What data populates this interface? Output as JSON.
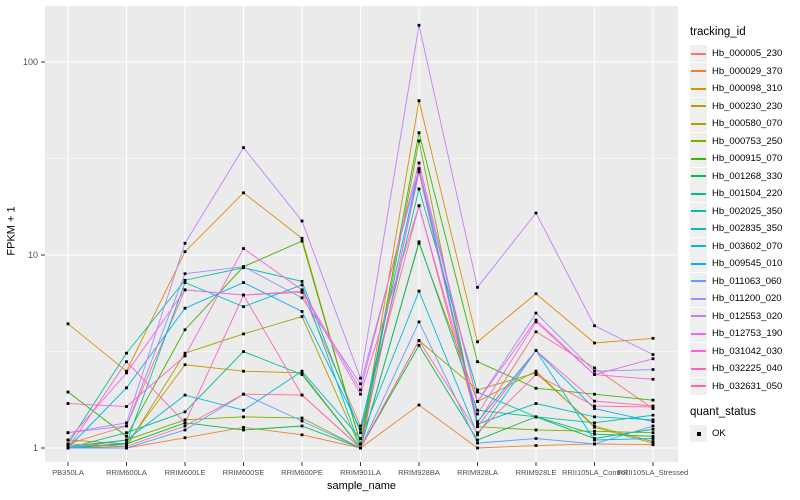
{
  "chart_data": {
    "type": "line",
    "xlabel": "sample_name",
    "ylabel": "FPKM + 1",
    "y_scale": "log10",
    "y_tick_labels": [
      "1",
      "10",
      "100"
    ],
    "y_tick_values": [
      1,
      10,
      100
    ],
    "y_minor_values": [
      3.162,
      31.62
    ],
    "x_categories": [
      "PB350LA",
      "RRIM600LA",
      "RRIM600LE",
      "RRIM600SE",
      "RRIM600PE",
      "RRIM901LA",
      "RRIM928BA",
      "RRIM928LA",
      "RRIM928LE",
      "RRII105LA_Control",
      "RRII105LA_Stressed"
    ],
    "legend": {
      "title": "tracking_id"
    },
    "legend2": {
      "title": "quant_status",
      "items": [
        {
          "label": "OK",
          "marker": "point"
        }
      ]
    },
    "point_color": "#000000",
    "series": [
      {
        "name": "Hb_000005_230",
        "color": "#F8766D",
        "values": [
          1.05,
          1.3,
          6.6,
          6.2,
          6.4,
          1.3,
          18.0,
          1.35,
          4.0,
          2.6,
          1.6
        ]
      },
      {
        "name": "Hb_000029_370",
        "color": "#EA8331",
        "values": [
          1.0,
          1.0,
          1.13,
          1.28,
          1.17,
          1.0,
          1.67,
          1.0,
          1.03,
          1.05,
          1.04
        ]
      },
      {
        "name": "Hb_000098_310",
        "color": "#D89000",
        "values": [
          4.4,
          2.5,
          10.4,
          21.0,
          12.2,
          1.05,
          63.0,
          3.55,
          6.3,
          3.5,
          3.7
        ]
      },
      {
        "name": "Hb_000230_230",
        "color": "#C09B00",
        "values": [
          1.1,
          1.05,
          2.7,
          2.5,
          2.45,
          1.0,
          11.5,
          1.74,
          2.5,
          1.28,
          1.06
        ]
      },
      {
        "name": "Hb_000580_070",
        "color": "#A3A500",
        "values": [
          1.0,
          1.02,
          3.1,
          3.9,
          4.8,
          1.0,
          3.6,
          2.0,
          2.45,
          1.3,
          1.08
        ]
      },
      {
        "name": "Hb_000753_250",
        "color": "#7CAE00",
        "values": [
          1.02,
          1.1,
          1.4,
          1.45,
          1.43,
          1.0,
          39.0,
          1.29,
          1.24,
          1.22,
          1.2
        ]
      },
      {
        "name": "Hb_000915_070",
        "color": "#39B600",
        "values": [
          1.95,
          1.15,
          4.1,
          8.7,
          11.8,
          1.05,
          43.0,
          2.8,
          2.04,
          1.9,
          1.77
        ]
      },
      {
        "name": "Hb_001268_330",
        "color": "#00BB4E",
        "values": [
          1.0,
          1.05,
          1.35,
          1.24,
          1.3,
          1.0,
          3.4,
          1.1,
          1.45,
          1.12,
          1.25
        ]
      },
      {
        "name": "Hb_001504_220",
        "color": "#00BF7D",
        "values": [
          1.0,
          1.2,
          1.54,
          3.16,
          2.4,
          1.0,
          11.7,
          1.57,
          1.45,
          1.18,
          1.15
        ]
      },
      {
        "name": "Hb_002025_350",
        "color": "#00C1A2",
        "values": [
          1.05,
          3.1,
          7.4,
          8.6,
          7.3,
          1.2,
          22.0,
          1.95,
          1.45,
          1.35,
          1.48
        ]
      },
      {
        "name": "Hb_002835_350",
        "color": "#00BFC4",
        "values": [
          1.0,
          1.06,
          7.2,
          5.4,
          7.0,
          1.0,
          27.0,
          1.33,
          1.7,
          1.45,
          1.4
        ]
      },
      {
        "name": "Hb_003602_070",
        "color": "#00BADE",
        "values": [
          1.0,
          1.1,
          1.88,
          1.57,
          2.5,
          1.12,
          6.5,
          1.17,
          3.2,
          1.1,
          1.12
        ]
      },
      {
        "name": "Hb_009545_010",
        "color": "#00B0F6",
        "values": [
          1.0,
          2.05,
          5.3,
          7.2,
          5.1,
          1.25,
          28.0,
          1.37,
          3.2,
          1.6,
          1.37
        ]
      },
      {
        "name": "Hb_011063_060",
        "color": "#619CFF",
        "values": [
          1.0,
          1.0,
          1.24,
          1.9,
          1.38,
          1.0,
          4.5,
          1.06,
          1.12,
          1.05,
          1.3
        ]
      },
      {
        "name": "Hb_011200_020",
        "color": "#9590FF",
        "values": [
          1.2,
          1.3,
          8.0,
          8.7,
          6.0,
          2.15,
          28.0,
          1.74,
          5.0,
          2.5,
          2.55
        ]
      },
      {
        "name": "Hb_012553_020",
        "color": "#C77CFF",
        "values": [
          1.2,
          1.35,
          11.5,
          36.0,
          15.0,
          2.3,
          155.0,
          6.8,
          16.5,
          4.3,
          3.05
        ]
      },
      {
        "name": "Hb_012753_190",
        "color": "#E76BF3",
        "values": [
          1.1,
          2.45,
          6.6,
          6.2,
          6.5,
          1.9,
          18.0,
          1.5,
          4.5,
          2.4,
          2.9
        ]
      },
      {
        "name": "Hb_031042_030",
        "color": "#FA62DB",
        "values": [
          1.7,
          1.64,
          3.0,
          10.8,
          6.6,
          2.0,
          30.0,
          1.74,
          4.6,
          2.4,
          2.27
        ]
      },
      {
        "name": "Hb_032225_040",
        "color": "#FF61BE",
        "values": [
          1.0,
          2.8,
          1.35,
          6.2,
          1.88,
          1.0,
          27.0,
          1.29,
          3.2,
          1.75,
          1.65
        ]
      },
      {
        "name": "Hb_032631_050",
        "color": "#FF6C91",
        "values": [
          1.05,
          1.02,
          1.3,
          1.9,
          1.88,
          1.0,
          3.6,
          1.2,
          2.4,
          1.65,
          1.63
        ]
      }
    ],
    "style": {
      "panel_background": "#EBEBEB",
      "grid_color": "#FFFFFF",
      "axis_text_color": "#4D4D4D",
      "tick_mark_color": "#333333",
      "legend_key_background": "#EFEFEF"
    }
  }
}
